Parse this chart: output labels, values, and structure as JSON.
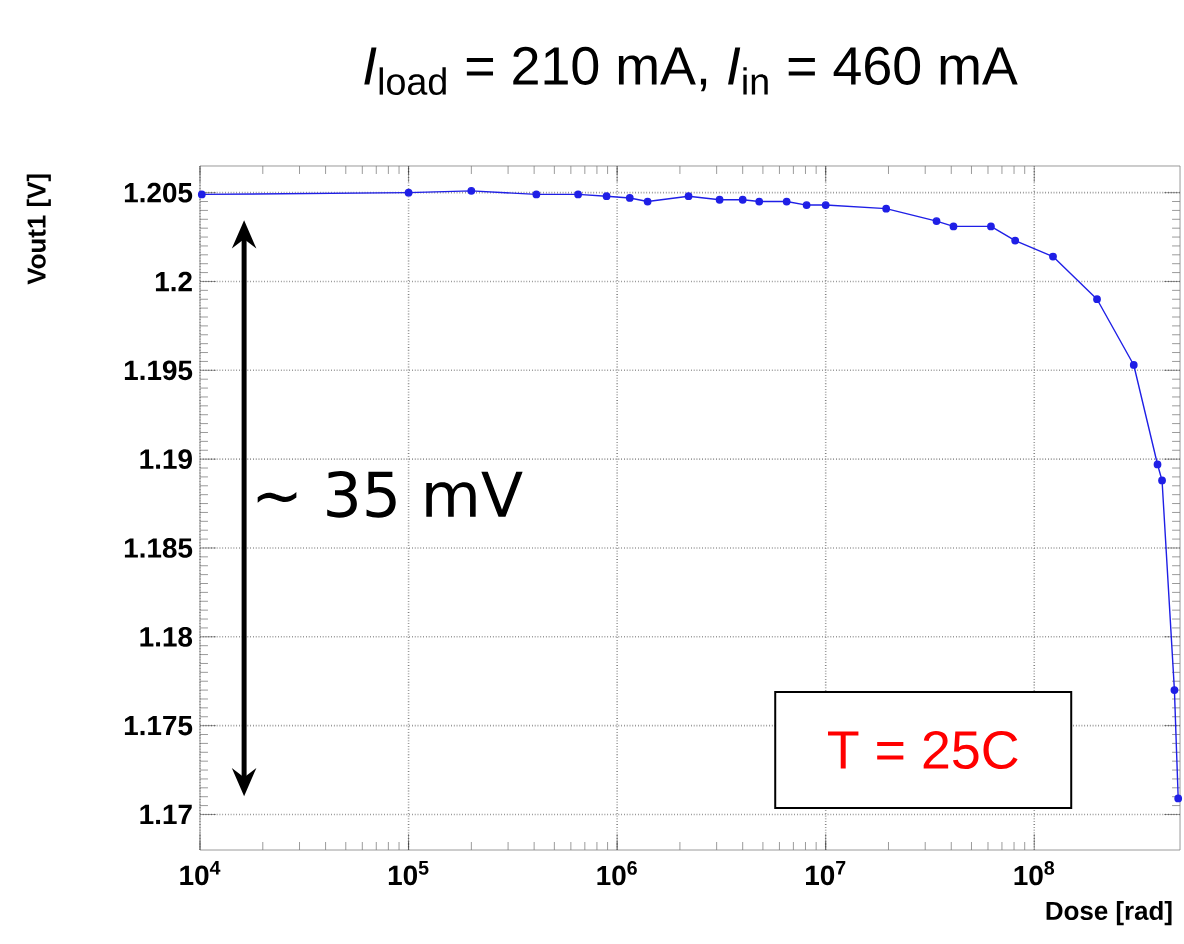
{
  "chart_data": {
    "type": "line",
    "title": "*I*$_{load}$ = 210 mA, *I*$_{in}$ = 460 mA",
    "xlabel": "Dose [rad]",
    "ylabel": "Vout1 [V]",
    "log": "x",
    "x": [
      10200,
      100000,
      200000,
      410000,
      650000,
      890000,
      1150000,
      1400000,
      2200000,
      3100000,
      4000000,
      4800000,
      6500000,
      8100000,
      10000000,
      19500000,
      34000000,
      41000000,
      62000000,
      81000000,
      123000000,
      200000000,
      300000000,
      390000000,
      410000000,
      470000000,
      490000000
    ],
    "series": [
      {
        "color": "#1f1fe6",
        "values": [
          1.2049,
          1.205,
          1.2051,
          1.2049,
          1.2049,
          1.2048,
          1.2047,
          1.2045,
          1.2048,
          1.2046,
          1.2046,
          1.2045,
          1.2045,
          1.2043,
          1.2043,
          1.2041,
          1.2034,
          1.2031,
          1.2031,
          1.2023,
          1.2014,
          1.199,
          1.1953,
          1.1897,
          1.1888,
          1.177,
          1.1709
        ]
      }
    ],
    "xlim": [
      10000,
      500000000
    ],
    "ylim": [
      1.168,
      1.2065
    ],
    "xticks": [
      {
        "value": 10000,
        "label": "10$^{4}$"
      },
      {
        "value": 100000,
        "label": "10$^{5}$"
      },
      {
        "value": 1000000,
        "label": "10$^{6}$"
      },
      {
        "value": 10000000,
        "label": "10$^{7}$"
      },
      {
        "value": 100000000,
        "label": "10$^{8}$"
      }
    ],
    "yticks": [
      1.17,
      1.175,
      1.18,
      1.185,
      1.19,
      1.195,
      1.2,
      1.205
    ],
    "grid": true,
    "marker": "circle",
    "line_style": "solid",
    "annotations": [
      "∼ 35 mV",
      "T = 25C"
    ]
  }
}
